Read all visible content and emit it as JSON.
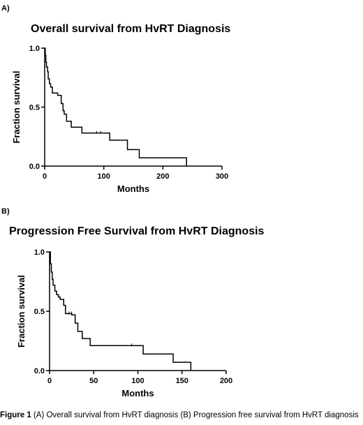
{
  "figure": {
    "caption_label": "Figure 1",
    "caption_text": "(A) Overall survival from HvRT diagnosis (B) Progression free survival from HvRT diagnosis"
  },
  "chart_data": [
    {
      "panel": "A)",
      "type": "line",
      "step": true,
      "title": "Overall survival from HvRT Diagnosis",
      "xlabel": "Months",
      "ylabel": "Fraction survival",
      "xlim": [
        0,
        300
      ],
      "ylim": [
        0,
        1
      ],
      "xticks": [
        0,
        100,
        200,
        300
      ],
      "yticks": [
        0,
        0.5,
        1
      ],
      "ytick_labels": [
        "0.0",
        "0.5",
        "1.0"
      ],
      "grid": false,
      "series": [
        {
          "x": [
            0,
            1,
            2,
            3,
            5,
            6,
            8,
            10,
            13,
            17,
            22,
            28,
            31,
            33,
            37,
            45,
            63,
            110,
            140,
            160,
            240
          ],
          "y": [
            1.0,
            0.94,
            0.88,
            0.84,
            0.8,
            0.74,
            0.7,
            0.67,
            0.62,
            0.62,
            0.6,
            0.53,
            0.47,
            0.44,
            0.38,
            0.33,
            0.28,
            0.22,
            0.14,
            0.07,
            0.0
          ],
          "censored": [
            [
              88,
              0.28
            ],
            [
              95,
              0.28
            ]
          ]
        }
      ]
    },
    {
      "panel": "B)",
      "type": "line",
      "step": true,
      "title": "Progression Free Survival from HvRT Diagnosis",
      "xlabel": "Months",
      "ylabel": "Fraction survival",
      "xlim": [
        0,
        200
      ],
      "ylim": [
        0,
        1
      ],
      "xticks": [
        0,
        50,
        100,
        150,
        200
      ],
      "yticks": [
        0,
        0.5,
        1
      ],
      "ytick_labels": [
        "0.0",
        "0.5",
        "1.0"
      ],
      "grid": false,
      "series": [
        {
          "x": [
            0,
            1,
            2,
            3,
            4,
            6,
            8,
            10,
            12,
            16,
            18,
            25,
            29,
            32,
            37,
            46,
            106,
            140,
            160
          ],
          "y": [
            1.0,
            0.9,
            0.83,
            0.77,
            0.72,
            0.67,
            0.64,
            0.62,
            0.6,
            0.55,
            0.48,
            0.47,
            0.4,
            0.33,
            0.27,
            0.21,
            0.14,
            0.07,
            0.0
          ],
          "censored": [
            [
              22,
              0.48
            ],
            [
              25,
              0.48
            ],
            [
              93,
              0.21
            ]
          ]
        }
      ]
    }
  ]
}
